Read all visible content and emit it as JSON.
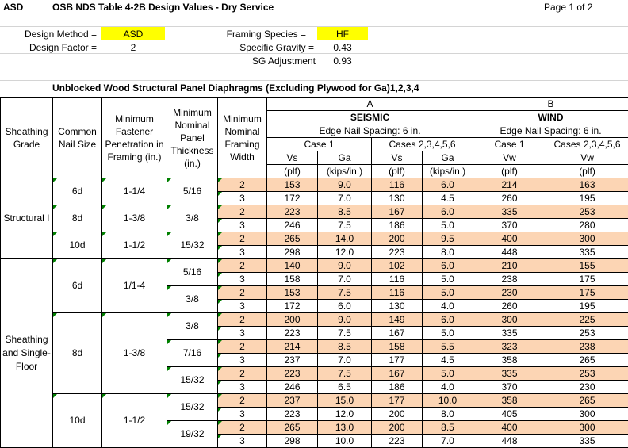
{
  "header": {
    "code": "ASD",
    "title": "OSB NDS Table 4-2B Design Values - Dry Service",
    "page": "Page 1 of 2"
  },
  "params": {
    "design_method_label": "Design Method =",
    "design_method_value": "ASD",
    "design_factor_label": "Design Factor =",
    "design_factor_value": "2",
    "framing_species_label": "Framing Species =",
    "framing_species_value": "HF",
    "specific_gravity_label": "Specific Gravity =",
    "specific_gravity_value": "0.43",
    "sg_adjustment_label": "SG Adjustment",
    "sg_adjustment_value": "0.93"
  },
  "table_title": "Unblocked Wood Structural Panel Diaphragms (Excluding Plywood for Ga)1,2,3,4",
  "columns": {
    "sheathing_grade": "Sheathing Grade",
    "common_nail_size": "Common Nail Size",
    "min_fastener": "Minimum Fastener Penetration in Framing (in.)",
    "min_nominal_panel": "Minimum Nominal Panel Thickness (in.)",
    "min_framing_width": "Minimum Nominal Framing Width",
    "group_a": "A",
    "group_b": "B",
    "seismic": "SEISMIC",
    "wind": "WIND",
    "edge_nail_spacing": "Edge Nail Spacing: 6 in.",
    "case1": "Case 1",
    "cases2_6": "Cases 2,3,4,5,6",
    "vs": "Vs",
    "ga": "Ga",
    "vw": "Vw",
    "plf": "(plf)",
    "kips": "(kips/in.)"
  },
  "rows": [
    {
      "grade": "Structural I",
      "nail": "6d",
      "pen": "1-1/4",
      "thick": "5/16",
      "w": "2",
      "vs1": "153",
      "ga1": "9.0",
      "vs2": "116",
      "ga2": "6.0",
      "vw1": "214",
      "vw2": "163"
    },
    {
      "w": "3",
      "vs1": "172",
      "ga1": "7.0",
      "vs2": "130",
      "ga2": "4.5",
      "vw1": "260",
      "vw2": "195"
    },
    {
      "nail": "8d",
      "pen": "1-3/8",
      "thick": "3/8",
      "w": "2",
      "vs1": "223",
      "ga1": "8.5",
      "vs2": "167",
      "ga2": "6.0",
      "vw1": "335",
      "vw2": "253"
    },
    {
      "w": "3",
      "vs1": "246",
      "ga1": "7.5",
      "vs2": "186",
      "ga2": "5.0",
      "vw1": "370",
      "vw2": "280"
    },
    {
      "nail": "10d",
      "pen": "1-1/2",
      "thick": "15/32",
      "w": "2",
      "vs1": "265",
      "ga1": "14.0",
      "vs2": "200",
      "ga2": "9.5",
      "vw1": "400",
      "vw2": "300"
    },
    {
      "w": "3",
      "vs1": "298",
      "ga1": "12.0",
      "vs2": "223",
      "ga2": "8.0",
      "vw1": "448",
      "vw2": "335"
    },
    {
      "grade": "Sheathing and Single-Floor",
      "nail": "6d",
      "pen": "1/1-4",
      "thick": "5/16",
      "w": "2",
      "vs1": "140",
      "ga1": "9.0",
      "vs2": "102",
      "ga2": "6.0",
      "vw1": "210",
      "vw2": "155"
    },
    {
      "w": "3",
      "vs1": "158",
      "ga1": "7.0",
      "vs2": "116",
      "ga2": "5.0",
      "vw1": "238",
      "vw2": "175"
    },
    {
      "thick": "3/8",
      "w": "2",
      "vs1": "153",
      "ga1": "7.5",
      "vs2": "116",
      "ga2": "5.0",
      "vw1": "230",
      "vw2": "175"
    },
    {
      "w": "3",
      "vs1": "172",
      "ga1": "6.0",
      "vs2": "130",
      "ga2": "4.0",
      "vw1": "260",
      "vw2": "195"
    },
    {
      "nail": "8d",
      "pen": "1-3/8",
      "thick": "3/8",
      "w": "2",
      "vs1": "200",
      "ga1": "9.0",
      "vs2": "149",
      "ga2": "6.0",
      "vw1": "300",
      "vw2": "225"
    },
    {
      "w": "3",
      "vs1": "223",
      "ga1": "7.5",
      "vs2": "167",
      "ga2": "5.0",
      "vw1": "335",
      "vw2": "253"
    },
    {
      "thick": "7/16",
      "w": "2",
      "vs1": "214",
      "ga1": "8.5",
      "vs2": "158",
      "ga2": "5.5",
      "vw1": "323",
      "vw2": "238"
    },
    {
      "w": "3",
      "vs1": "237",
      "ga1": "7.0",
      "vs2": "177",
      "ga2": "4.5",
      "vw1": "358",
      "vw2": "265"
    },
    {
      "thick": "15/32",
      "w": "2",
      "vs1": "223",
      "ga1": "7.5",
      "vs2": "167",
      "ga2": "5.0",
      "vw1": "335",
      "vw2": "253"
    },
    {
      "w": "3",
      "vs1": "246",
      "ga1": "6.5",
      "vs2": "186",
      "ga2": "4.0",
      "vw1": "370",
      "vw2": "230"
    },
    {
      "nail": "10d",
      "pen": "1-1/2",
      "thick": "15/32",
      "w": "2",
      "vs1": "237",
      "ga1": "15.0",
      "vs2": "177",
      "ga2": "10.0",
      "vw1": "358",
      "vw2": "265"
    },
    {
      "w": "3",
      "vs1": "223",
      "ga1": "12.0",
      "vs2": "200",
      "ga2": "8.0",
      "vw1": "405",
      "vw2": "300"
    },
    {
      "thick": "19/32",
      "w": "2",
      "vs1": "265",
      "ga1": "13.0",
      "vs2": "200",
      "ga2": "8.5",
      "vw1": "400",
      "vw2": "300"
    },
    {
      "w": "3",
      "vs1": "298",
      "ga1": "10.0",
      "vs2": "223",
      "ga2": "7.0",
      "vw1": "448",
      "vw2": "335"
    }
  ],
  "colors": {
    "highlight": "#ffff00",
    "even_row": "#fcd5b4",
    "comment_marker": "#008000"
  }
}
